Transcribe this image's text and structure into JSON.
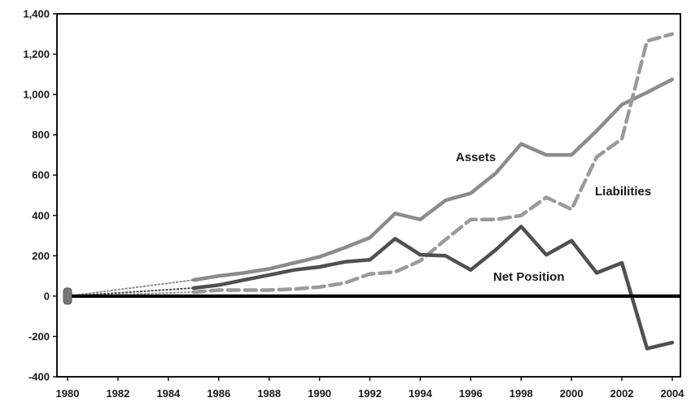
{
  "chart_data": {
    "type": "line",
    "title": "",
    "xlabel": "",
    "ylabel": "",
    "xlim": [
      1980,
      2004
    ],
    "ylim": [
      -400,
      1400
    ],
    "yticks": [
      -400,
      -200,
      0,
      200,
      400,
      600,
      800,
      1000,
      1200,
      1400
    ],
    "ytick_labels": [
      "-400",
      "-200",
      "0",
      "200",
      "400",
      "600",
      "800",
      "1,000",
      "1,200",
      "1,400"
    ],
    "xticks": [
      1980,
      1982,
      1984,
      1986,
      1988,
      1990,
      1992,
      1994,
      1996,
      1998,
      2000,
      2002,
      2004
    ],
    "xtick_labels": [
      "1980",
      "1982",
      "1984",
      "1986",
      "1988",
      "1990",
      "1992",
      "1994",
      "1996",
      "1998",
      "2000",
      "2002",
      "2004"
    ],
    "grid": false,
    "legend": "none (series labeled inline)",
    "zero_line": true,
    "series": [
      {
        "name": "Assets",
        "color": "#8c8c8c",
        "style": "solid",
        "dotted_segment": [
          [
            1980,
            0
          ],
          [
            1985,
            80
          ]
        ],
        "points": [
          [
            1985,
            80
          ],
          [
            1986,
            100
          ],
          [
            1987,
            115
          ],
          [
            1988,
            135
          ],
          [
            1989,
            165
          ],
          [
            1990,
            195
          ],
          [
            1991,
            240
          ],
          [
            1992,
            290
          ],
          [
            1993,
            410
          ],
          [
            1994,
            380
          ],
          [
            1995,
            475
          ],
          [
            1996,
            510
          ],
          [
            1997,
            610
          ],
          [
            1998,
            755
          ],
          [
            1999,
            700
          ],
          [
            2000,
            700
          ],
          [
            2001,
            820
          ],
          [
            2002,
            950
          ],
          [
            2003,
            1010
          ],
          [
            2004,
            1075
          ]
        ]
      },
      {
        "name": "Liabilities",
        "color": "#9a9a9a",
        "style": "dashed",
        "dotted_segment": [
          [
            1980,
            0
          ],
          [
            1985,
            20
          ]
        ],
        "points": [
          [
            1985,
            20
          ],
          [
            1986,
            30
          ],
          [
            1987,
            30
          ],
          [
            1988,
            30
          ],
          [
            1989,
            35
          ],
          [
            1990,
            45
          ],
          [
            1991,
            65
          ],
          [
            1992,
            110
          ],
          [
            1993,
            120
          ],
          [
            1994,
            175
          ],
          [
            1995,
            280
          ],
          [
            1996,
            380
          ],
          [
            1997,
            380
          ],
          [
            1998,
            400
          ],
          [
            1999,
            490
          ],
          [
            2000,
            430
          ],
          [
            2001,
            690
          ],
          [
            2002,
            780
          ],
          [
            2003,
            1265
          ],
          [
            2004,
            1300
          ]
        ]
      },
      {
        "name": "Net Position",
        "color": "#505050",
        "style": "solid",
        "dotted_segment": [
          [
            1980,
            0
          ],
          [
            1985,
            40
          ]
        ],
        "points": [
          [
            1985,
            40
          ],
          [
            1986,
            55
          ],
          [
            1987,
            80
          ],
          [
            1988,
            105
          ],
          [
            1989,
            130
          ],
          [
            1990,
            145
          ],
          [
            1991,
            170
          ],
          [
            1992,
            180
          ],
          [
            1993,
            285
          ],
          [
            1994,
            205
          ],
          [
            1995,
            200
          ],
          [
            1996,
            130
          ],
          [
            1997,
            230
          ],
          [
            1998,
            345
          ],
          [
            1999,
            205
          ],
          [
            2000,
            275
          ],
          [
            2001,
            115
          ],
          [
            2002,
            165
          ],
          [
            2003,
            -260
          ],
          [
            2004,
            -230
          ]
        ]
      }
    ],
    "annotations": [
      {
        "text": "Assets",
        "series": "Assets"
      },
      {
        "text": "Liabilities",
        "series": "Liabilities"
      },
      {
        "text": "Net Position",
        "series": "Net Position"
      }
    ]
  }
}
